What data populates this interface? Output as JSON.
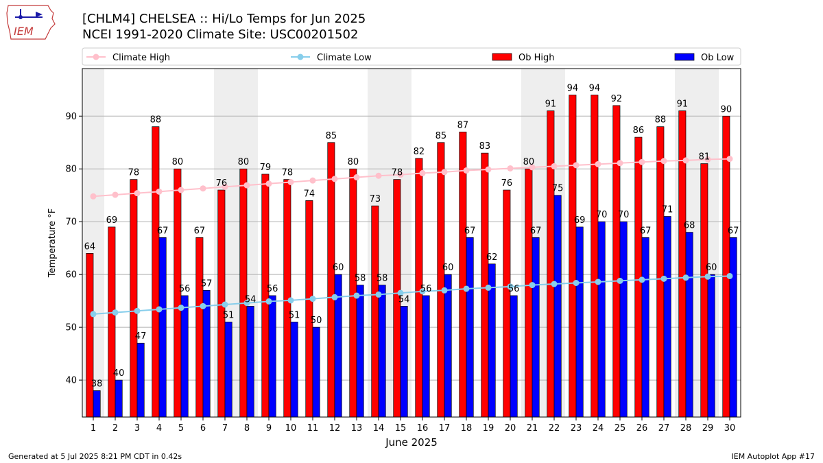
{
  "header": {
    "title_line1": "[CHLM4] CHELSEA :: Hi/Lo Temps for Jun 2025",
    "title_line2": "NCEI 1991-2020 Climate Site: USC00201502",
    "logo_text": "IEM"
  },
  "footer": {
    "left": "Generated at 5 Jul 2025 8:21 PM CDT in 0.42s",
    "right": "IEM Autoplot App #17"
  },
  "chart_data": {
    "type": "bar",
    "xlabel": "June 2025",
    "ylabel": "Temperature °F",
    "ylim": [
      33,
      99
    ],
    "yticks": [
      40,
      50,
      60,
      70,
      80,
      90
    ],
    "grid": true,
    "legend_position": "top",
    "categories": [
      "1",
      "2",
      "3",
      "4",
      "5",
      "6",
      "7",
      "8",
      "9",
      "10",
      "11",
      "12",
      "13",
      "14",
      "15",
      "16",
      "17",
      "18",
      "19",
      "20",
      "21",
      "22",
      "23",
      "24",
      "25",
      "26",
      "27",
      "28",
      "29",
      "30"
    ],
    "weekend_bands": [
      [
        1,
        1
      ],
      [
        7,
        8
      ],
      [
        14,
        15
      ],
      [
        21,
        22
      ],
      [
        28,
        29
      ]
    ],
    "series": [
      {
        "name": "Ob High",
        "kind": "bar",
        "color": "#ff0000",
        "values": [
          64,
          69,
          78,
          88,
          80,
          67,
          76,
          80,
          79,
          78,
          74,
          85,
          80,
          73,
          78,
          82,
          85,
          87,
          83,
          76,
          80,
          91,
          94,
          94,
          92,
          86,
          88,
          91,
          81,
          90
        ]
      },
      {
        "name": "Ob Low",
        "kind": "bar",
        "color": "#0000ff",
        "values": [
          38,
          40,
          47,
          67,
          56,
          57,
          51,
          54,
          56,
          51,
          50,
          60,
          58,
          58,
          54,
          56,
          60,
          67,
          62,
          56,
          67,
          75,
          69,
          70,
          70,
          67,
          71,
          68,
          60,
          67
        ]
      },
      {
        "name": "Climate High",
        "kind": "line",
        "color": "#ffc0cb",
        "values": [
          74.8,
          75.1,
          75.4,
          75.7,
          76.0,
          76.3,
          76.6,
          76.9,
          77.2,
          77.5,
          77.8,
          78.1,
          78.4,
          78.7,
          78.9,
          79.2,
          79.4,
          79.7,
          79.9,
          80.1,
          80.3,
          80.5,
          80.7,
          80.9,
          81.1,
          81.3,
          81.5,
          81.6,
          81.8,
          81.9
        ]
      },
      {
        "name": "Climate Low",
        "kind": "line",
        "color": "#87ceeb",
        "values": [
          52.5,
          52.8,
          53.1,
          53.4,
          53.7,
          54.0,
          54.3,
          54.6,
          54.9,
          55.1,
          55.4,
          55.7,
          56.0,
          56.2,
          56.5,
          56.8,
          57.0,
          57.3,
          57.5,
          57.7,
          58.0,
          58.2,
          58.4,
          58.6,
          58.8,
          59.0,
          59.2,
          59.4,
          59.6,
          59.7
        ]
      }
    ],
    "legend": [
      {
        "label": "Climate High",
        "marker": "line",
        "color": "#ffc0cb"
      },
      {
        "label": "Climate Low",
        "marker": "line",
        "color": "#87ceeb"
      },
      {
        "label": "Ob High",
        "marker": "box",
        "color": "#ff0000"
      },
      {
        "label": "Ob Low",
        "marker": "box",
        "color": "#0000ff"
      }
    ]
  }
}
